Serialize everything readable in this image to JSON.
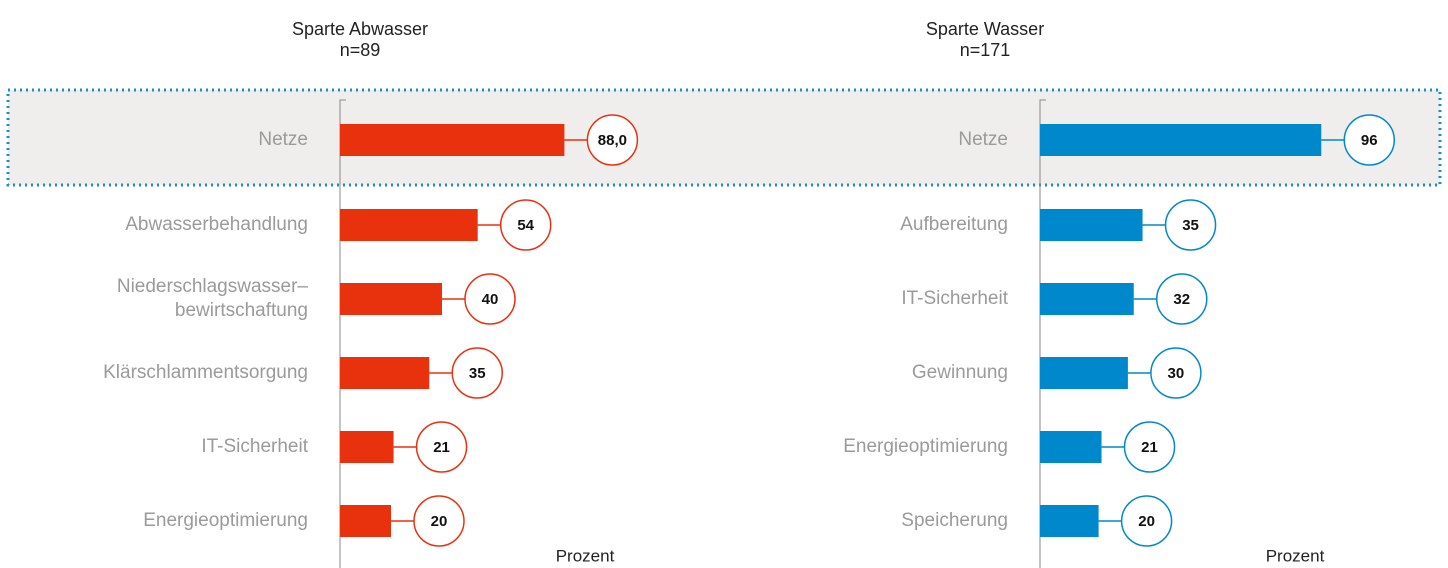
{
  "chart_data": [
    {
      "type": "bar",
      "orientation": "horizontal",
      "title": "Sparte Abwasser",
      "subtitle": "n=89",
      "xlabel": "Prozent",
      "categories": [
        "Netze",
        "Abwasserbehandlung",
        "Niederschlagswasser–\nbewirtschaftung",
        "Klärschlammentsorgung",
        "IT-Sicherheit",
        "Energieoptimierung"
      ],
      "values": [
        88.0,
        54,
        40,
        35,
        21,
        20
      ],
      "value_labels": [
        "88,0",
        "54",
        "40",
        "35",
        "21",
        "20"
      ],
      "color": "#e8320e",
      "xlim": [
        0,
        100
      ],
      "highlight": "Netze"
    },
    {
      "type": "bar",
      "orientation": "horizontal",
      "title": "Sparte Wasser",
      "subtitle": "n=171",
      "xlabel": "Prozent",
      "categories": [
        "Netze",
        "Aufbereitung",
        "IT-Sicherheit",
        "Gewinnung",
        "Energieoptimierung",
        "Speicherung"
      ],
      "values": [
        96,
        35,
        32,
        30,
        21,
        20
      ],
      "color": "#0088cc",
      "xlim": [
        0,
        100
      ],
      "highlight": "Netze"
    }
  ]
}
